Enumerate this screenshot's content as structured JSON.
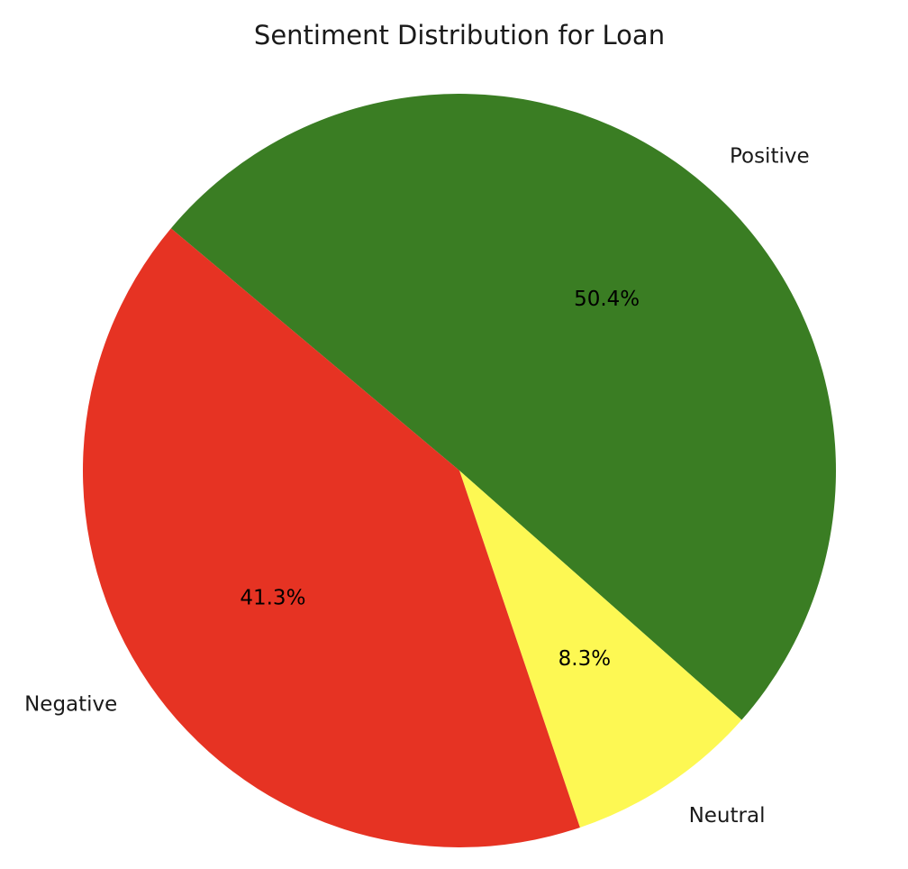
{
  "chart_data": {
    "type": "pie",
    "title": "Sentiment Distribution for Loan",
    "slices": [
      {
        "label": "Positive",
        "value": 50.4,
        "pct_label": "50.4%",
        "color": "#3a7d23"
      },
      {
        "label": "Neutral",
        "value": 8.3,
        "pct_label": "8.3%",
        "color": "#fdf853"
      },
      {
        "label": "Negative",
        "value": 41.3,
        "pct_label": "41.3%",
        "color": "#e63323"
      }
    ],
    "start_angle_deg": 140,
    "direction": "clockwise",
    "legend": "none"
  }
}
